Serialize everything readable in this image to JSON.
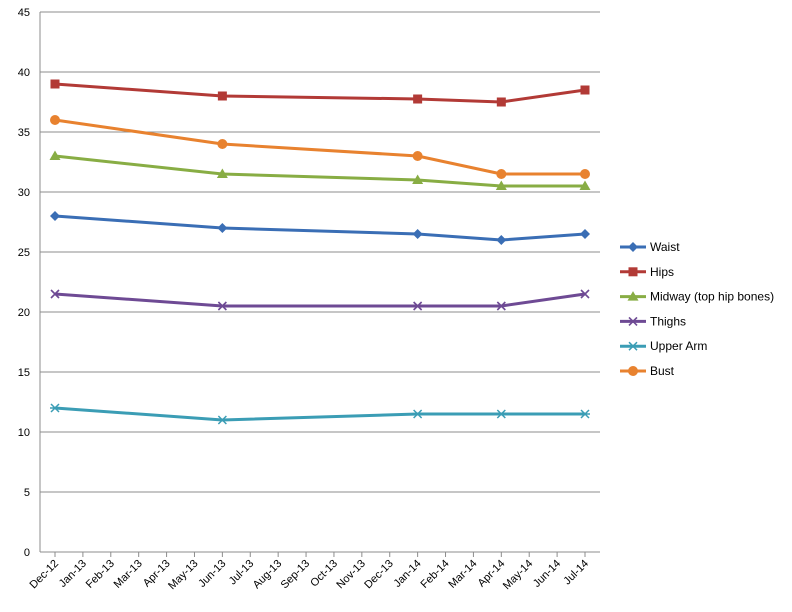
{
  "chart_data": {
    "type": "line",
    "title": "",
    "xlabel": "",
    "ylabel": "",
    "ylim": [
      0,
      45
    ],
    "yticks": [
      0,
      5,
      10,
      15,
      20,
      25,
      30,
      35,
      40,
      45
    ],
    "grid": "horizontal",
    "legend_position": "right",
    "x_tick_labels": [
      "Dec-12",
      "Jan-13",
      "Feb-13",
      "Mar-13",
      "Apr-13",
      "May-13",
      "Jun-13",
      "Jul-13",
      "Aug-13",
      "Sep-13",
      "Oct-13",
      "Nov-13",
      "Dec-13",
      "Jan-14",
      "Feb-14",
      "Mar-14",
      "Apr-14",
      "May-14",
      "Jun-14",
      "Jul-14"
    ],
    "x": [
      "Dec-12",
      "Jun-13",
      "Jan-14",
      "Apr-14",
      "Jul-14"
    ],
    "series": [
      {
        "name": "Waist",
        "color": "#3a6eb5",
        "marker": "diamond",
        "values": [
          28,
          27,
          26.5,
          26,
          26.5
        ]
      },
      {
        "name": "Hips",
        "color": "#b23a36",
        "marker": "square",
        "values": [
          39,
          38,
          37.75,
          37.5,
          38.5
        ]
      },
      {
        "name": "Midway (top hip bones)",
        "color": "#88ad44",
        "marker": "triangle",
        "values": [
          33,
          31.5,
          31,
          30.5,
          30.5
        ]
      },
      {
        "name": "Thighs",
        "color": "#6e4a94",
        "marker": "x",
        "values": [
          21.5,
          20.5,
          20.5,
          20.5,
          21.5
        ]
      },
      {
        "name": "Upper Arm",
        "color": "#3b9db5",
        "marker": "asterisk",
        "values": [
          12,
          11,
          11.5,
          11.5,
          11.5
        ]
      },
      {
        "name": "Bust",
        "color": "#e8822f",
        "marker": "circle",
        "values": [
          36,
          34,
          33,
          31.5,
          31.5
        ]
      }
    ]
  }
}
